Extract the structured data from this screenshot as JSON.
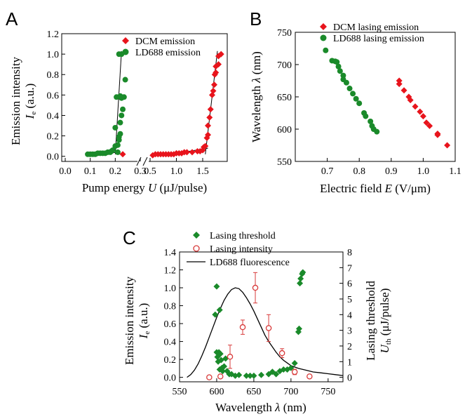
{
  "chart_data": [
    {
      "type": "scatter",
      "panel": "A",
      "ylabel": "Emission intensity",
      "ylabel_symbol": "I",
      "ylabel_sub": "e",
      "ylabel_unit": " (a.u.)",
      "xlabel": "Pump energy ",
      "xlabel_symbol": "U",
      "xlabel_unit": " (μJ/pulse)",
      "xlim_left": [
        0.0,
        0.3
      ],
      "xlim_right": [
        0.5,
        1.9
      ],
      "ylim": [
        -0.05,
        1.2
      ],
      "x_ticks_left": [
        "0.0",
        "0.1",
        "0.2",
        "0.3"
      ],
      "x_ticks_right": [
        "0.5",
        "1.0",
        "1.5"
      ],
      "y_ticks": [
        "0.0",
        "0.2",
        "0.4",
        "0.6",
        "0.8",
        "1.0",
        "1.2"
      ],
      "legend_position": "top-right",
      "series": [
        {
          "name": "DCM emission",
          "color": "#e8141c",
          "marker": "diamond",
          "points": [
            [
              0.23,
              0.02
            ],
            [
              0.55,
              0.01
            ],
            [
              0.6,
              0.02
            ],
            [
              0.65,
              0.02
            ],
            [
              0.7,
              0.02
            ],
            [
              0.75,
              0.02
            ],
            [
              0.8,
              0.02
            ],
            [
              0.85,
              0.02
            ],
            [
              0.9,
              0.02
            ],
            [
              0.95,
              0.02
            ],
            [
              1.0,
              0.03
            ],
            [
              1.05,
              0.03
            ],
            [
              1.1,
              0.03
            ],
            [
              1.15,
              0.04
            ],
            [
              1.2,
              0.04
            ],
            [
              1.3,
              0.04
            ],
            [
              1.4,
              0.05
            ],
            [
              1.45,
              0.05
            ],
            [
              1.5,
              0.06
            ],
            [
              1.52,
              0.09
            ],
            [
              1.55,
              0.1
            ],
            [
              1.58,
              0.18
            ],
            [
              1.6,
              0.21
            ],
            [
              1.6,
              0.3
            ],
            [
              1.63,
              0.38
            ],
            [
              1.65,
              0.46
            ],
            [
              1.68,
              0.6
            ],
            [
              1.7,
              0.64
            ],
            [
              1.72,
              0.7
            ],
            [
              1.73,
              0.8
            ],
            [
              1.75,
              0.82
            ],
            [
              1.75,
              0.88
            ],
            [
              1.8,
              0.9
            ],
            [
              1.8,
              0.98
            ],
            [
              1.85,
              1.0
            ]
          ],
          "fit_lines": [
            [
              [
                1.55,
                0.02
              ],
              [
                1.78,
                1.03
              ]
            ],
            [
              [
                0.9,
                0.02
              ],
              [
                1.6,
                0.08
              ]
            ]
          ]
        },
        {
          "name": "LD688 emission",
          "color": "#1a8a2a",
          "marker": "circle",
          "points": [
            [
              0.09,
              0.02
            ],
            [
              0.1,
              0.02
            ],
            [
              0.11,
              0.02
            ],
            [
              0.12,
              0.02
            ],
            [
              0.13,
              0.03
            ],
            [
              0.14,
              0.03
            ],
            [
              0.15,
              0.03
            ],
            [
              0.16,
              0.03
            ],
            [
              0.17,
              0.04
            ],
            [
              0.18,
              0.04
            ],
            [
              0.185,
              0.05
            ],
            [
              0.19,
              0.06
            ],
            [
              0.2,
              0.1
            ],
            [
              0.2,
              0.28
            ],
            [
              0.205,
              0.58
            ],
            [
              0.21,
              0.04
            ],
            [
              0.21,
              0.11
            ],
            [
              0.215,
              0.16
            ],
            [
              0.215,
              0.19
            ],
            [
              0.22,
              0.22
            ],
            [
              0.22,
              0.33
            ],
            [
              0.225,
              0.4
            ],
            [
              0.225,
              0.57
            ],
            [
              0.22,
              0.59
            ],
            [
              0.23,
              0.46
            ],
            [
              0.235,
              0.58
            ],
            [
              0.24,
              0.75
            ],
            [
              0.215,
              1.0
            ],
            [
              0.225,
              1.0
            ]
          ],
          "fit_lines": [
            [
              [
                0.2,
                0.02
              ],
              [
                0.225,
                1.03
              ]
            ],
            [
              [
                0.09,
                0.02
              ],
              [
                0.22,
                0.04
              ]
            ]
          ]
        }
      ]
    },
    {
      "type": "scatter",
      "panel": "B",
      "ylabel": "Wavelength ",
      "ylabel_symbol": "λ",
      "ylabel_unit": " (nm)",
      "xlabel": "Electric field ",
      "xlabel_symbol": "E",
      "xlabel_unit": " (V/μm)",
      "xlim": [
        0.6,
        1.1
      ],
      "ylim": [
        550,
        750
      ],
      "x_ticks": [
        "0.7",
        "0.8",
        "0.9",
        "1.0",
        "1.1"
      ],
      "y_ticks": [
        "550",
        "600",
        "650",
        "700",
        "750"
      ],
      "legend_position": "top-right",
      "series": [
        {
          "name": "DCM lasing emission",
          "color": "#e8141c",
          "marker": "diamond",
          "points": [
            [
              0.925,
              675
            ],
            [
              0.925,
              670
            ],
            [
              0.94,
              660
            ],
            [
              0.955,
              650
            ],
            [
              0.96,
              645
            ],
            [
              0.975,
              635
            ],
            [
              0.99,
              627
            ],
            [
              1.0,
              620
            ],
            [
              1.01,
              610
            ],
            [
              1.02,
              605
            ],
            [
              1.045,
              593
            ],
            [
              1.045,
              591
            ],
            [
              1.075,
              575
            ]
          ]
        },
        {
          "name": "LD688 lasing emission",
          "color": "#1a8a2a",
          "marker": "circle",
          "points": [
            [
              0.695,
              722
            ],
            [
              0.715,
              706
            ],
            [
              0.725,
              705
            ],
            [
              0.73,
              704
            ],
            [
              0.735,
              697
            ],
            [
              0.74,
              690
            ],
            [
              0.75,
              683
            ],
            [
              0.75,
              677
            ],
            [
              0.76,
              672
            ],
            [
              0.77,
              663
            ],
            [
              0.78,
              655
            ],
            [
              0.79,
              647
            ],
            [
              0.8,
              640
            ],
            [
              0.815,
              625
            ],
            [
              0.82,
              620
            ],
            [
              0.835,
              612
            ],
            [
              0.84,
              605
            ],
            [
              0.845,
              600
            ],
            [
              0.855,
              596
            ]
          ]
        }
      ]
    },
    {
      "type": "scatter",
      "panel": "C",
      "ylabel": "Emission intensity",
      "ylabel_symbol": "I",
      "ylabel_sub": "e",
      "ylabel_unit": " (a.u.)",
      "y2label": "Lasing threshold",
      "y2label_symbol": "U",
      "y2label_sub": "th",
      "y2label_unit": " (μJ/pulse)",
      "xlabel": "Wavelength ",
      "xlabel_symbol": "λ",
      "xlabel_unit": " (nm)",
      "xlim": [
        550,
        770
      ],
      "ylim": [
        -0.05,
        1.4
      ],
      "y2lim": [
        -0.2857,
        8
      ],
      "x_ticks": [
        "550",
        "600",
        "650",
        "700",
        "750"
      ],
      "y_ticks": [
        "0.0",
        "0.2",
        "0.4",
        "0.6",
        "0.8",
        "1.0",
        "1.2",
        "1.4"
      ],
      "y2_ticks": [
        "0",
        "1",
        "2",
        "3",
        "4",
        "5",
        "6",
        "7",
        "8"
      ],
      "legend_position": "top-left",
      "series": [
        {
          "name": "Lasing threshold",
          "axis": "right",
          "color": "#1a8a2a",
          "marker": "diamond",
          "points": [
            [
              598,
              4.0
            ],
            [
              600,
              5.8
            ],
            [
              600,
              1.6
            ],
            [
              601,
              1.3
            ],
            [
              602,
              1.0
            ],
            [
              603,
              1.6
            ],
            [
              604,
              4.3
            ],
            [
              604,
              0.5
            ],
            [
              605,
              1.5
            ],
            [
              606,
              1.1
            ],
            [
              607,
              0.6
            ],
            [
              608,
              0.4
            ],
            [
              610,
              0.7
            ],
            [
              612,
              1.2
            ],
            [
              614,
              0.4
            ],
            [
              617,
              0.2
            ],
            [
              620,
              0.2
            ],
            [
              625,
              0.1
            ],
            [
              630,
              0.15
            ],
            [
              640,
              0.1
            ],
            [
              645,
              0.1
            ],
            [
              650,
              0.1
            ],
            [
              660,
              0.15
            ],
            [
              670,
              0.2
            ],
            [
              675,
              0.35
            ],
            [
              680,
              0.2
            ],
            [
              685,
              0.4
            ],
            [
              690,
              0.5
            ],
            [
              695,
              0.5
            ],
            [
              700,
              0.6
            ],
            [
              705,
              0.9
            ],
            [
              710,
              2.9
            ],
            [
              711,
              3.1
            ],
            [
              712,
              6.0
            ],
            [
              713,
              6.3
            ],
            [
              715,
              6.6
            ],
            [
              716,
              6.7
            ]
          ]
        },
        {
          "name": "Lasing intensity",
          "axis": "left",
          "color": "#d83a3a",
          "marker": "open-circle",
          "points": [
            [
              590,
              0.0,
              0.0
            ],
            [
              605,
              0.01,
              0.0
            ],
            [
              618,
              0.23,
              0.13
            ],
            [
              635,
              0.56,
              0.08
            ],
            [
              652,
              1.0,
              0.17
            ],
            [
              670,
              0.55,
              0.15
            ],
            [
              688,
              0.27,
              0.05
            ],
            [
              705,
              0.06,
              0.03
            ],
            [
              725,
              0.01,
              0.0
            ]
          ]
        },
        {
          "name": "LD688 fluorescence",
          "axis": "left",
          "type": "line",
          "color": "#000000",
          "points": [
            [
              560,
              0.0
            ],
            [
              565,
              0.03
            ],
            [
              570,
              0.08
            ],
            [
              575,
              0.15
            ],
            [
              580,
              0.24
            ],
            [
              585,
              0.34
            ],
            [
              590,
              0.45
            ],
            [
              595,
              0.56
            ],
            [
              600,
              0.67
            ],
            [
              605,
              0.77
            ],
            [
              610,
              0.86
            ],
            [
              615,
              0.93
            ],
            [
              620,
              0.98
            ],
            [
              625,
              1.0
            ],
            [
              630,
              0.99
            ],
            [
              635,
              0.95
            ],
            [
              640,
              0.89
            ],
            [
              645,
              0.82
            ],
            [
              650,
              0.74
            ],
            [
              655,
              0.65
            ],
            [
              660,
              0.56
            ],
            [
              665,
              0.47
            ],
            [
              670,
              0.4
            ],
            [
              675,
              0.34
            ],
            [
              680,
              0.28
            ],
            [
              685,
              0.23
            ],
            [
              690,
              0.19
            ],
            [
              695,
              0.16
            ],
            [
              700,
              0.13
            ],
            [
              710,
              0.1
            ],
            [
              720,
              0.08
            ],
            [
              730,
              0.06
            ],
            [
              740,
              0.05
            ],
            [
              750,
              0.04
            ],
            [
              760,
              0.03
            ],
            [
              770,
              0.02
            ]
          ]
        }
      ]
    }
  ]
}
